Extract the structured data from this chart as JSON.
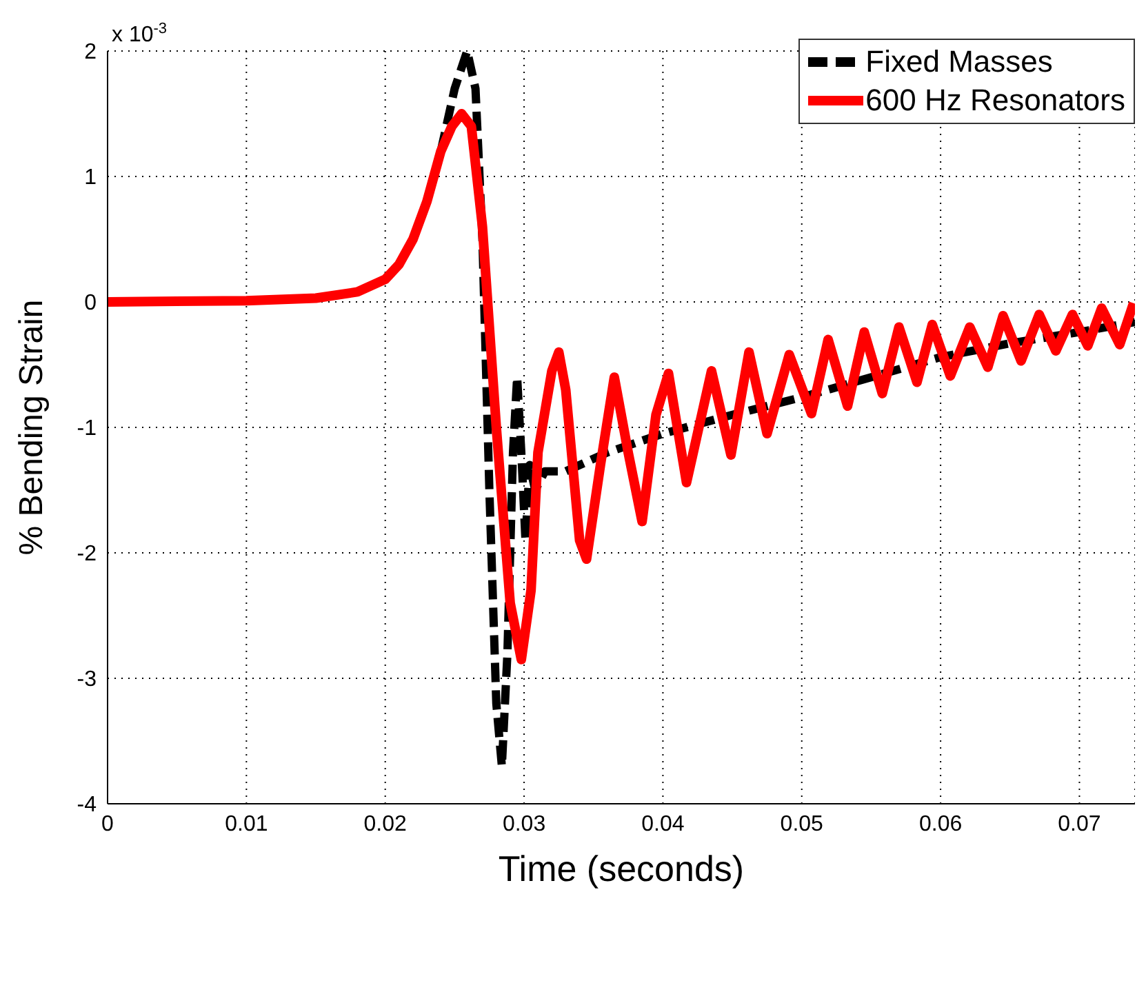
{
  "chart_data": {
    "type": "line",
    "xlabel": "Time (seconds)",
    "ylabel": "% Bending Strain",
    "annotations": [
      "x 10$^{-3}$"
    ],
    "xlim": [
      0,
      0.074
    ],
    "xticks": [
      0,
      0.01,
      0.02,
      0.03,
      0.04,
      0.05,
      0.06,
      0.07
    ],
    "ylim": [
      -4,
      2
    ],
    "yticks": [
      -4,
      -3,
      -2,
      -1,
      0,
      1,
      2
    ],
    "grid": true,
    "legend": "top right",
    "series": [
      {
        "name": "Fixed Masses",
        "color": "#000000",
        "line_style": "dashed",
        "x": [
          0,
          0.01,
          0.015,
          0.018,
          0.02,
          0.021,
          0.022,
          0.023,
          0.024,
          0.025,
          0.0259,
          0.0265,
          0.027,
          0.0275,
          0.028,
          0.0284,
          0.0288,
          0.0292,
          0.0295,
          0.0298,
          0.0301,
          0.0304,
          0.0308,
          0.0315,
          0.033,
          0.036,
          0.04,
          0.045,
          0.05,
          0.055,
          0.06,
          0.065,
          0.07,
          0.074
        ],
        "values": [
          0,
          0.01,
          0.03,
          0.08,
          0.18,
          0.3,
          null,
          null,
          1.2,
          1.7,
          2.0,
          1.7,
          0.5,
          -1.5,
          -3.2,
          -3.7,
          -2.8,
          -1.2,
          -0.6,
          -1.2,
          -1.9,
          -1.3,
          -1.5,
          -1.35,
          -1.35,
          -1.2,
          -1.05,
          -0.9,
          -0.76,
          -0.6,
          -0.44,
          -0.33,
          -0.24,
          -0.16
        ]
      },
      {
        "name": "600 Hz Resonators",
        "color": "#ff0000",
        "line_style": "solid",
        "x": [
          0,
          0.01,
          0.015,
          0.018,
          0.02,
          0.021,
          0.022,
          0.023,
          0.024,
          0.0248,
          0.0255,
          0.0262,
          0.027,
          0.028,
          0.029,
          0.0298,
          0.0305,
          0.031,
          0.032,
          0.0325,
          0.033,
          0.034,
          0.0345,
          0.0355,
          0.0365,
          0.0375,
          0.0385,
          0.0395,
          0.0404,
          0.0417,
          0.0435,
          0.0449,
          0.0462,
          0.0475,
          0.0491,
          0.0507,
          0.0519,
          0.0533,
          0.0545,
          0.0558,
          0.057,
          0.0583,
          0.0594,
          0.0607,
          0.0621,
          0.0634,
          0.0645,
          0.0658,
          0.0671,
          0.0683,
          0.0695,
          0.0706,
          0.0716,
          0.0729,
          0.0739
        ],
        "values": [
          0,
          0.01,
          0.03,
          0.08,
          0.18,
          0.3,
          0.5,
          0.8,
          1.2,
          1.4,
          1.5,
          1.4,
          0.6,
          -1.0,
          -2.4,
          -2.85,
          -2.3,
          -1.2,
          -0.55,
          -0.4,
          -0.7,
          -1.9,
          -2.05,
          -1.3,
          -0.6,
          -1.2,
          -1.75,
          -0.9,
          -0.57,
          -1.44,
          -0.55,
          -1.22,
          -0.4,
          -1.05,
          -0.42,
          -0.89,
          -0.3,
          -0.83,
          -0.24,
          -0.73,
          -0.2,
          -0.64,
          -0.18,
          -0.59,
          -0.2,
          -0.52,
          -0.11,
          -0.47,
          -0.1,
          -0.39,
          -0.1,
          -0.35,
          -0.05,
          -0.34,
          -0.01
        ]
      }
    ]
  }
}
